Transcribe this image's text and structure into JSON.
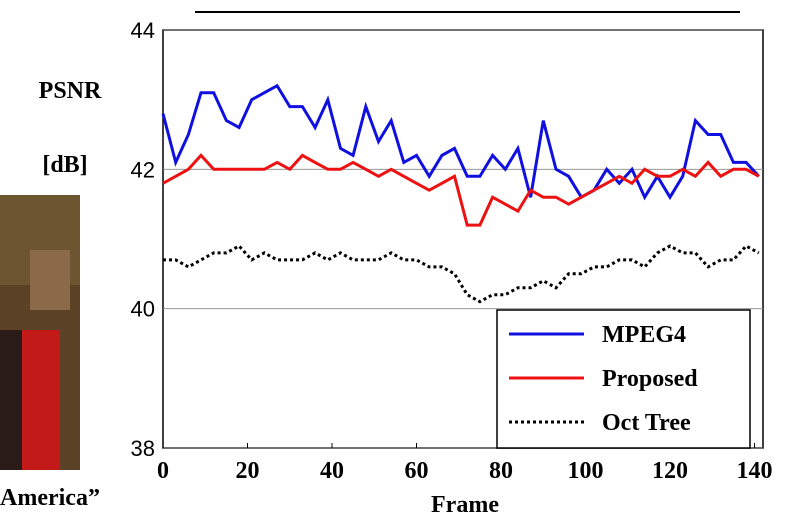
{
  "chart_data": {
    "type": "line",
    "ylabel_lines": [
      "PSNR",
      "[dB]"
    ],
    "xlabel": "Frame",
    "caption_fragment": "America”",
    "x": [
      0,
      3,
      6,
      9,
      12,
      15,
      18,
      21,
      24,
      27,
      30,
      33,
      36,
      39,
      42,
      45,
      48,
      51,
      54,
      57,
      60,
      63,
      66,
      69,
      72,
      75,
      78,
      81,
      84,
      87,
      90,
      93,
      96,
      99,
      102,
      105,
      108,
      111,
      114,
      117,
      120,
      123,
      126,
      129,
      132,
      135,
      138,
      141
    ],
    "series": [
      {
        "name": "MPEG4",
        "color": "#1010e0",
        "line_style": "solid",
        "values": [
          42.8,
          42.1,
          42.5,
          43.1,
          43.1,
          42.7,
          42.6,
          43.0,
          43.1,
          43.2,
          42.9,
          42.9,
          42.6,
          43.0,
          42.3,
          42.2,
          42.9,
          42.4,
          42.7,
          42.1,
          42.2,
          41.9,
          42.2,
          42.3,
          41.9,
          41.9,
          42.2,
          42.0,
          42.3,
          41.6,
          42.7,
          42.0,
          41.9,
          41.6,
          41.7,
          42.0,
          41.8,
          42.0,
          41.6,
          41.9,
          41.6,
          41.9,
          42.7,
          42.5,
          42.5,
          42.1,
          42.1,
          41.9
        ]
      },
      {
        "name": "Proposed",
        "color": "#ee1111",
        "line_style": "solid",
        "values": [
          41.8,
          41.9,
          42.0,
          42.2,
          42.0,
          42.0,
          42.0,
          42.0,
          42.0,
          42.1,
          42.0,
          42.2,
          42.1,
          42.0,
          42.0,
          42.1,
          42.0,
          41.9,
          42.0,
          41.9,
          41.8,
          41.7,
          41.8,
          41.9,
          41.2,
          41.2,
          41.6,
          41.5,
          41.4,
          41.7,
          41.6,
          41.6,
          41.5,
          41.6,
          41.7,
          41.8,
          41.9,
          41.8,
          42.0,
          41.9,
          41.9,
          42.0,
          41.9,
          42.1,
          41.9,
          42.0,
          42.0,
          41.9
        ]
      },
      {
        "name": "Oct Tree",
        "color": "#000000",
        "line_style": "dotted",
        "values": [
          40.7,
          40.7,
          40.6,
          40.7,
          40.8,
          40.8,
          40.9,
          40.7,
          40.8,
          40.7,
          40.7,
          40.7,
          40.8,
          40.7,
          40.8,
          40.7,
          40.7,
          40.7,
          40.8,
          40.7,
          40.7,
          40.6,
          40.6,
          40.5,
          40.2,
          40.1,
          40.2,
          40.2,
          40.3,
          40.3,
          40.4,
          40.3,
          40.5,
          40.5,
          40.6,
          40.6,
          40.7,
          40.7,
          40.6,
          40.8,
          40.9,
          40.8,
          40.8,
          40.6,
          40.7,
          40.7,
          40.9,
          40.8
        ]
      }
    ],
    "xlim": [
      0,
      142
    ],
    "xticks": [
      0,
      20,
      40,
      60,
      80,
      100,
      120,
      140
    ],
    "ylim": [
      38,
      44
    ],
    "yticks": [
      38,
      40,
      42,
      44
    ],
    "grid": true,
    "legend": "lower right"
  }
}
